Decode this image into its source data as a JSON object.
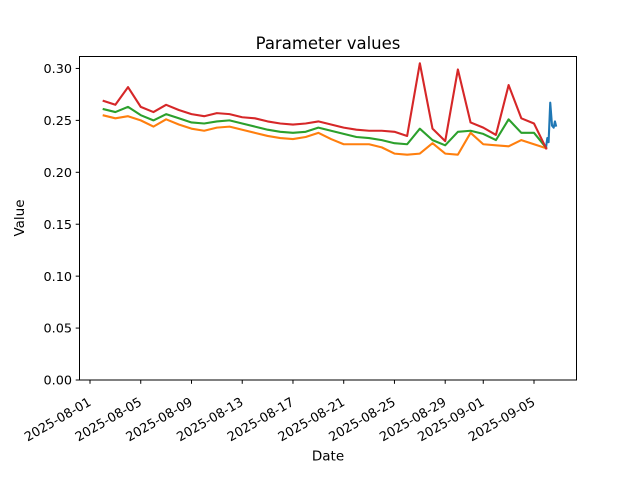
{
  "chart_data": {
    "type": "line",
    "title": "Parameter values",
    "xlabel": "Date",
    "ylabel": "Value",
    "grid": false,
    "legend": "none",
    "ylim": [
      0.0,
      0.3115
    ],
    "xlim_days": [
      -0.8,
      38.4
    ],
    "x_axis_unit": "days since 2025-08-01",
    "y_ticks": {
      "values": [
        0.0,
        0.05,
        0.1,
        0.15,
        0.2,
        0.25,
        0.3
      ],
      "labels": [
        "0.00",
        "0.05",
        "0.10",
        "0.15",
        "0.20",
        "0.25",
        "0.30"
      ]
    },
    "x_ticks": {
      "days": [
        0,
        4,
        8,
        12,
        16,
        20,
        24,
        28,
        31,
        35
      ],
      "labels": [
        "2025-08-01",
        "2025-08-05",
        "2025-08-09",
        "2025-08-13",
        "2025-08-17",
        "2025-08-21",
        "2025-08-25",
        "2025-08-29",
        "2025-09-01",
        "2025-09-05"
      ]
    },
    "dates": [
      "2025-08-02",
      "2025-08-03",
      "2025-08-04",
      "2025-08-05",
      "2025-08-06",
      "2025-08-07",
      "2025-08-08",
      "2025-08-09",
      "2025-08-10",
      "2025-08-11",
      "2025-08-12",
      "2025-08-13",
      "2025-08-14",
      "2025-08-15",
      "2025-08-16",
      "2025-08-17",
      "2025-08-18",
      "2025-08-19",
      "2025-08-20",
      "2025-08-21",
      "2025-08-22",
      "2025-08-23",
      "2025-08-24",
      "2025-08-25",
      "2025-08-26",
      "2025-08-27",
      "2025-08-28",
      "2025-08-29",
      "2025-08-30",
      "2025-08-31",
      "2025-09-01",
      "2025-09-02",
      "2025-09-03",
      "2025-09-04",
      "2025-09-05",
      "2025-09-06"
    ],
    "series": [
      {
        "name": "series-blue",
        "color": "#1f77b4",
        "x_days": [
          35.95,
          36.05,
          36.15,
          36.28,
          36.42,
          36.55,
          36.65,
          36.75
        ],
        "values": [
          0.224,
          0.233,
          0.229,
          0.267,
          0.245,
          0.243,
          0.249,
          0.244
        ]
      },
      {
        "name": "series-orange",
        "color": "#ff7f0e",
        "x_days": [
          1,
          2,
          3,
          4,
          5,
          6,
          7,
          8,
          9,
          10,
          11,
          12,
          13,
          14,
          15,
          16,
          17,
          18,
          19,
          20,
          21,
          22,
          23,
          24,
          25,
          26,
          27,
          28,
          29,
          30,
          31,
          32,
          33,
          34,
          35,
          36
        ],
        "values": [
          0.255,
          0.252,
          0.254,
          0.25,
          0.244,
          0.251,
          0.246,
          0.242,
          0.24,
          0.243,
          0.244,
          0.241,
          0.238,
          0.235,
          0.233,
          0.232,
          0.234,
          0.238,
          0.232,
          0.227,
          0.227,
          0.227,
          0.224,
          0.218,
          0.217,
          0.218,
          0.228,
          0.218,
          0.217,
          0.238,
          0.227,
          0.226,
          0.225,
          0.231,
          0.227,
          0.223
        ]
      },
      {
        "name": "series-green",
        "color": "#2ca02c",
        "x_days": [
          1,
          2,
          3,
          4,
          5,
          6,
          7,
          8,
          9,
          10,
          11,
          12,
          13,
          14,
          15,
          16,
          17,
          18,
          19,
          20,
          21,
          22,
          23,
          24,
          25,
          26,
          27,
          28,
          29,
          30,
          31,
          32,
          33,
          34,
          35,
          36
        ],
        "values": [
          0.261,
          0.258,
          0.263,
          0.255,
          0.25,
          0.256,
          0.252,
          0.248,
          0.247,
          0.249,
          0.25,
          0.247,
          0.244,
          0.241,
          0.239,
          0.238,
          0.239,
          0.243,
          0.24,
          0.237,
          0.234,
          0.233,
          0.231,
          0.228,
          0.227,
          0.242,
          0.231,
          0.226,
          0.239,
          0.24,
          0.237,
          0.231,
          0.251,
          0.238,
          0.238,
          0.223
        ]
      },
      {
        "name": "series-red",
        "color": "#d62728",
        "x_days": [
          1,
          2,
          3,
          4,
          5,
          6,
          7,
          8,
          9,
          10,
          11,
          12,
          13,
          14,
          15,
          16,
          17,
          18,
          19,
          20,
          21,
          22,
          23,
          24,
          25,
          26,
          27,
          28,
          29,
          30,
          31,
          32,
          33,
          34,
          35,
          36
        ],
        "values": [
          0.269,
          0.265,
          0.282,
          0.263,
          0.258,
          0.265,
          0.26,
          0.256,
          0.254,
          0.257,
          0.256,
          0.253,
          0.252,
          0.249,
          0.247,
          0.246,
          0.247,
          0.249,
          0.246,
          0.243,
          0.241,
          0.24,
          0.24,
          0.239,
          0.235,
          0.305,
          0.242,
          0.23,
          0.299,
          0.248,
          0.243,
          0.236,
          0.284,
          0.252,
          0.247,
          0.222
        ]
      }
    ]
  }
}
